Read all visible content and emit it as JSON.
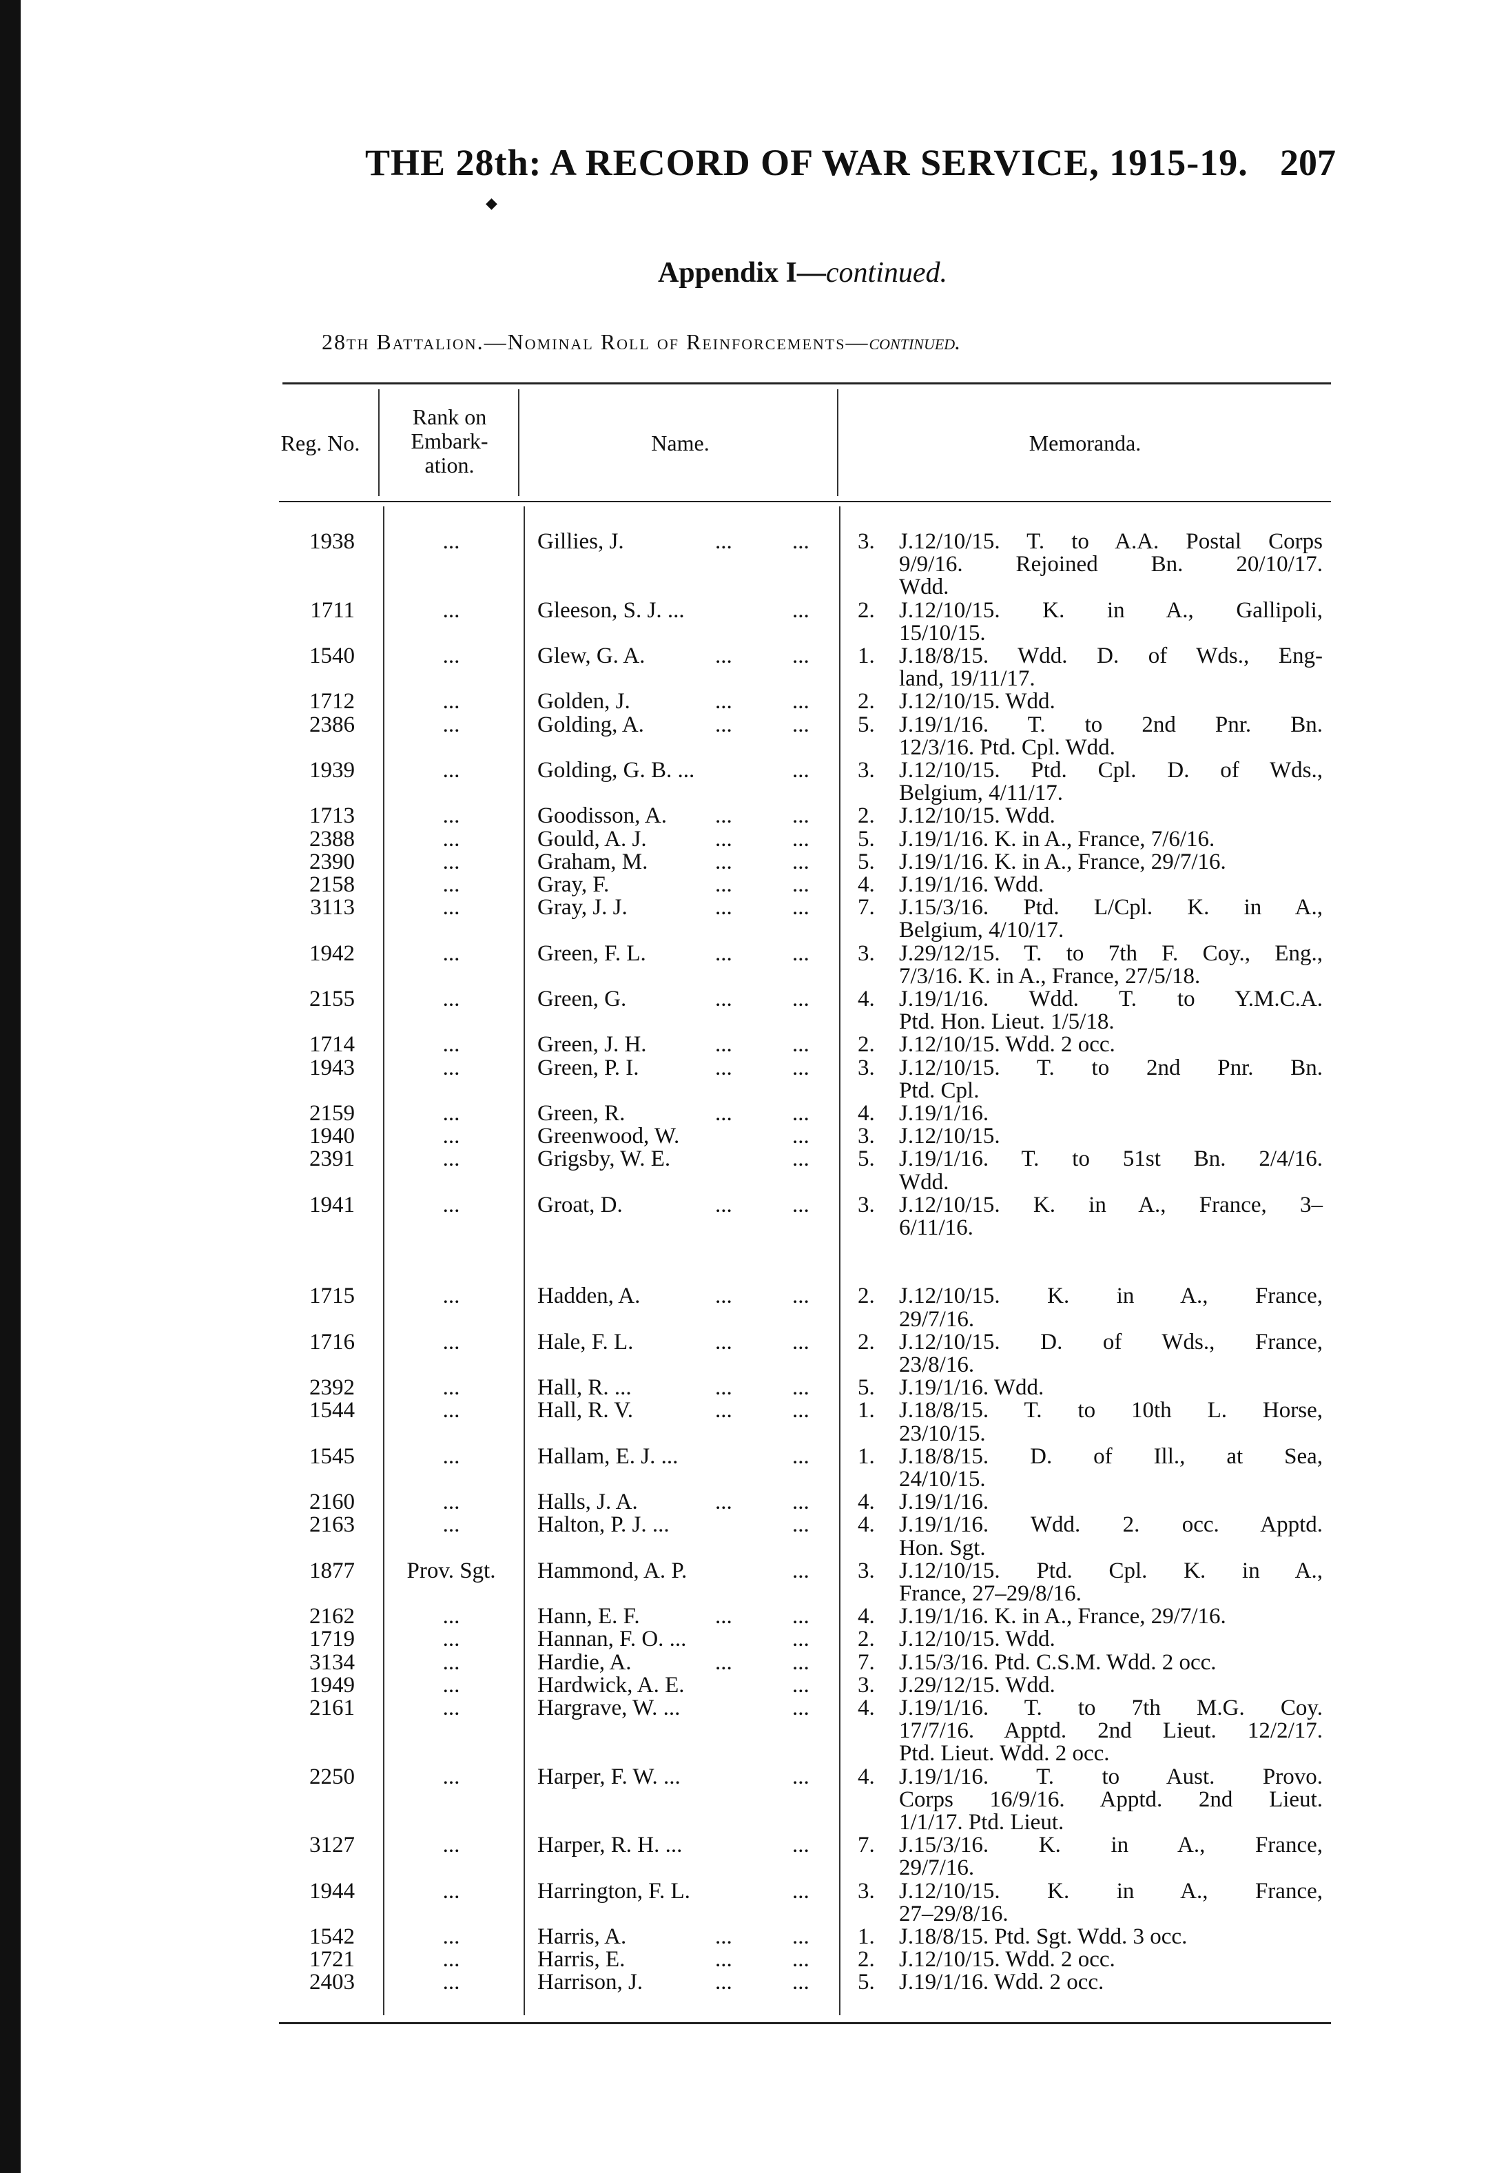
{
  "header": {
    "running_title": "THE 28th: A RECORD OF WAR SERVICE, 1915-19.",
    "page_number": "207",
    "appendix": "Appendix I—",
    "appendix_italic": "continued.",
    "subtitle": "28th Battalion.—Nominal Roll of Reinforcements—",
    "subtitle_italic": "continued."
  },
  "table": {
    "columns": [
      "Reg. No.",
      "Rank on Embark- ation.",
      "Name.",
      "Memoranda."
    ],
    "rank_header_lines": [
      "Rank on",
      "Embark-",
      "ation."
    ],
    "groups": [
      [
        {
          "reg": "1938",
          "rank": "...",
          "name": "Gillies, J.",
          "mid": "...",
          "end": "...",
          "num": "3.",
          "memo": [
            "J.12/10/15. T. to A.A. Postal Corps",
            "9/9/16. Rejoined Bn. 20/10/17.",
            "Wdd."
          ]
        },
        {
          "reg": "1711",
          "rank": "...",
          "name": "Gleeson, S. J. ...",
          "mid": "",
          "end": "...",
          "num": "2.",
          "memo": [
            "J.12/10/15. K. in A., Gallipoli,",
            "15/10/15."
          ]
        },
        {
          "reg": "1540",
          "rank": "...",
          "name": "Glew, G. A.",
          "mid": "...",
          "end": "...",
          "num": "1.",
          "memo": [
            "J.18/8/15. Wdd. D. of Wds., Eng-",
            "land, 19/11/17."
          ]
        },
        {
          "reg": "1712",
          "rank": "...",
          "name": "Golden, J.",
          "mid": "...",
          "end": "...",
          "num": "2.",
          "memo": [
            "J.12/10/15. Wdd."
          ]
        },
        {
          "reg": "2386",
          "rank": "...",
          "name": "Golding, A.",
          "mid": "...",
          "end": "...",
          "num": "5.",
          "memo": [
            "J.19/1/16. T. to 2nd Pnr. Bn.",
            "12/3/16. Ptd. Cpl. Wdd."
          ]
        },
        {
          "reg": "1939",
          "rank": "...",
          "name": "Golding, G. B. ...",
          "mid": "",
          "end": "...",
          "num": "3.",
          "memo": [
            "J.12/10/15. Ptd. Cpl. D. of Wds.,",
            "Belgium, 4/11/17."
          ]
        },
        {
          "reg": "1713",
          "rank": "...",
          "name": "Goodisson, A.",
          "mid": "...",
          "end": "...",
          "num": "2.",
          "memo": [
            "J.12/10/15. Wdd."
          ]
        },
        {
          "reg": "2388",
          "rank": "...",
          "name": "Gould, A. J.",
          "mid": "...",
          "end": "...",
          "num": "5.",
          "memo": [
            "J.19/1/16. K. in A., France, 7/6/16."
          ]
        },
        {
          "reg": "2390",
          "rank": "...",
          "name": "Graham, M.",
          "mid": "...",
          "end": "...",
          "num": "5.",
          "memo": [
            "J.19/1/16. K. in A., France, 29/7/16."
          ]
        },
        {
          "reg": "2158",
          "rank": "...",
          "name": "Gray, F.",
          "mid": "...",
          "end": "...",
          "num": "4.",
          "memo": [
            "J.19/1/16. Wdd."
          ]
        },
        {
          "reg": "3113",
          "rank": "...",
          "name": "Gray, J. J.",
          "mid": "...",
          "end": "...",
          "num": "7.",
          "memo": [
            "J.15/3/16. Ptd. L/Cpl. K. in A.,",
            "Belgium, 4/10/17."
          ]
        },
        {
          "reg": "1942",
          "rank": "...",
          "name": "Green, F. L.",
          "mid": "...",
          "end": "...",
          "num": "3.",
          "memo": [
            "J.29/12/15. T. to 7th F. Coy., Eng.,",
            "7/3/16. K. in A., France, 27/5/18."
          ]
        },
        {
          "reg": "2155",
          "rank": "...",
          "name": "Green, G.",
          "mid": "...",
          "end": "...",
          "num": "4.",
          "memo": [
            "J.19/1/16. Wdd. T. to Y.M.C.A.",
            "Ptd. Hon. Lieut. 1/5/18."
          ]
        },
        {
          "reg": "1714",
          "rank": "...",
          "name": "Green, J. H.",
          "mid": "...",
          "end": "...",
          "num": "2.",
          "memo": [
            "J.12/10/15. Wdd. 2 occ."
          ]
        },
        {
          "reg": "1943",
          "rank": "...",
          "name": "Green, P. I.",
          "mid": "...",
          "end": "...",
          "num": "3.",
          "memo": [
            "J.12/10/15. T. to 2nd Pnr. Bn.",
            "Ptd. Cpl."
          ]
        },
        {
          "reg": "2159",
          "rank": "...",
          "name": "Green, R.",
          "mid": "...",
          "end": "...",
          "num": "4.",
          "memo": [
            "J.19/1/16."
          ]
        },
        {
          "reg": "1940",
          "rank": "...",
          "name": "Greenwood, W.",
          "mid": "",
          "end": "...",
          "num": "3.",
          "memo": [
            "J.12/10/15."
          ]
        },
        {
          "reg": "2391",
          "rank": "...",
          "name": "Grigsby, W. E.",
          "mid": "",
          "end": "...",
          "num": "5.",
          "memo": [
            "J.19/1/16. T. to 51st Bn. 2/4/16.",
            "Wdd."
          ]
        },
        {
          "reg": "1941",
          "rank": "...",
          "name": "Groat, D.",
          "mid": "...",
          "end": "...",
          "num": "3.",
          "memo": [
            "J.12/10/15. K. in A., France, 3–",
            "6/11/16."
          ]
        }
      ],
      [
        {
          "reg": "1715",
          "rank": "...",
          "name": "Hadden, A.",
          "mid": "...",
          "end": "...",
          "num": "2.",
          "memo": [
            "J.12/10/15. K. in A., France,",
            "29/7/16."
          ]
        },
        {
          "reg": "1716",
          "rank": "...",
          "name": "Hale, F. L.",
          "mid": "...",
          "end": "...",
          "num": "2.",
          "memo": [
            "J.12/10/15. D. of Wds., France,",
            "23/8/16."
          ]
        },
        {
          "reg": "2392",
          "rank": "...",
          "name": "Hall, R. ...",
          "mid": "...",
          "end": "...",
          "num": "5.",
          "memo": [
            "J.19/1/16. Wdd."
          ]
        },
        {
          "reg": "1544",
          "rank": "...",
          "name": "Hall, R. V.",
          "mid": "...",
          "end": "...",
          "num": "1.",
          "memo": [
            "J.18/8/15. T. to 10th L. Horse,",
            "23/10/15."
          ]
        },
        {
          "reg": "1545",
          "rank": "...",
          "name": "Hallam, E. J. ...",
          "mid": "",
          "end": "...",
          "num": "1.",
          "memo": [
            "J.18/8/15. D. of Ill., at Sea,",
            "24/10/15."
          ]
        },
        {
          "reg": "2160",
          "rank": "...",
          "name": "Halls, J. A.",
          "mid": "...",
          "end": "...",
          "num": "4.",
          "memo": [
            "J.19/1/16."
          ]
        },
        {
          "reg": "2163",
          "rank": "...",
          "name": "Halton, P. J. ...",
          "mid": "",
          "end": "...",
          "num": "4.",
          "memo": [
            "J.19/1/16. Wdd. 2. occ. Apptd.",
            "Hon. Sgt."
          ]
        },
        {
          "reg": "1877",
          "rank": "Prov. Sgt.",
          "name": "Hammond, A. P.",
          "mid": "",
          "end": "...",
          "num": "3.",
          "memo": [
            "J.12/10/15. Ptd. Cpl. K. in A.,",
            "France, 27–29/8/16."
          ]
        },
        {
          "reg": "2162",
          "rank": "...",
          "name": "Hann, E. F.",
          "mid": "...",
          "end": "...",
          "num": "4.",
          "memo": [
            "J.19/1/16. K. in A., France, 29/7/16."
          ]
        },
        {
          "reg": "1719",
          "rank": "...",
          "name": "Hannan, F. O. ...",
          "mid": "",
          "end": "...",
          "num": "2.",
          "memo": [
            "J.12/10/15. Wdd."
          ]
        },
        {
          "reg": "3134",
          "rank": "...",
          "name": "Hardie, A.",
          "mid": "...",
          "end": "...",
          "num": "7.",
          "memo": [
            "J.15/3/16. Ptd. C.S.M. Wdd. 2 occ."
          ]
        },
        {
          "reg": "1949",
          "rank": "...",
          "name": "Hardwick, A. E.",
          "mid": "",
          "end": "...",
          "num": "3.",
          "memo": [
            "J.29/12/15. Wdd."
          ]
        },
        {
          "reg": "2161",
          "rank": "...",
          "name": "Hargrave, W. ...",
          "mid": "",
          "end": "...",
          "num": "4.",
          "memo": [
            "J.19/1/16. T. to 7th M.G. Coy.",
            "17/7/16. Apptd. 2nd Lieut. 12/2/17.",
            "Ptd. Lieut. Wdd. 2 occ."
          ]
        },
        {
          "reg": "2250",
          "rank": "...",
          "name": "Harper, F. W. ...",
          "mid": "",
          "end": "...",
          "num": "4.",
          "memo": [
            "J.19/1/16. T. to Aust. Provo.",
            "Corps 16/9/16. Apptd. 2nd Lieut.",
            "1/1/17. Ptd. Lieut."
          ]
        },
        {
          "reg": "3127",
          "rank": "...",
          "name": "Harper, R. H. ...",
          "mid": "",
          "end": "...",
          "num": "7.",
          "memo": [
            "J.15/3/16. K. in A., France,",
            "29/7/16."
          ]
        },
        {
          "reg": "1944",
          "rank": "...",
          "name": "Harrington, F. L.",
          "mid": "",
          "end": "...",
          "num": "3.",
          "memo": [
            "J.12/10/15. K. in A., France,",
            "27–29/8/16."
          ]
        },
        {
          "reg": "1542",
          "rank": "...",
          "name": "Harris, A.",
          "mid": "...",
          "end": "...",
          "num": "1.",
          "memo": [
            "J.18/8/15. Ptd. Sgt. Wdd. 3 occ."
          ]
        },
        {
          "reg": "1721",
          "rank": "...",
          "name": "Harris, E.",
          "mid": "...",
          "end": "...",
          "num": "2.",
          "memo": [
            "J.12/10/15. Wdd. 2 occ."
          ]
        },
        {
          "reg": "2403",
          "rank": "...",
          "name": "Harrison, J.",
          "mid": "...",
          "end": "...",
          "num": "5.",
          "memo": [
            "J.19/1/16. Wdd. 2 occ."
          ]
        }
      ]
    ]
  }
}
